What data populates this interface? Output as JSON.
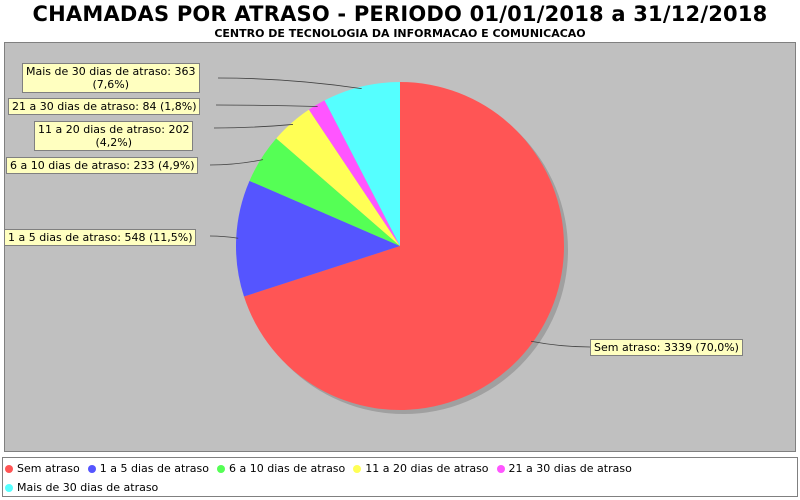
{
  "chart_data": {
    "type": "pie",
    "title": "CHAMADAS POR ATRASO - PERIODO 01/01/2018 a 31/12/2018",
    "subtitle": "CENTRO DE TECNOLOGIA DA INFORMACAO E COMUNICACAO",
    "legend_position": "bottom",
    "slices": [
      {
        "name": "Sem atraso",
        "value": 3339,
        "percent": "70,0%",
        "label": "Sem atraso: 3339 (70,0%)",
        "color": "#ff5555"
      },
      {
        "name": "1 a 5 dias de atraso",
        "value": 548,
        "percent": "11,5%",
        "label": "1 a 5 dias de atraso: 548 (11,5%)",
        "color": "#5555ff"
      },
      {
        "name": "6 a 10 dias de atraso",
        "value": 233,
        "percent": "4,9%",
        "label": "6 a 10 dias de atraso: 233 (4,9%)",
        "color": "#55ff55"
      },
      {
        "name": "11 a 20 dias de atraso",
        "value": 202,
        "percent": "4,2%",
        "label_line1": "11 a 20 dias de atraso: 202",
        "label_line2": "(4,2%)",
        "color": "#ffff55"
      },
      {
        "name": "21 a 30 dias de atraso",
        "value": 84,
        "percent": "1,8%",
        "label": "21 a 30 dias de atraso: 84 (1,8%)",
        "color": "#ff55ff"
      },
      {
        "name": "Mais de 30 dias de atraso",
        "value": 363,
        "percent": "7,6%",
        "label_line1": "Mais de 30 dias de atraso: 363",
        "label_line2": "(7,6%)",
        "color": "#55ffff"
      }
    ]
  }
}
